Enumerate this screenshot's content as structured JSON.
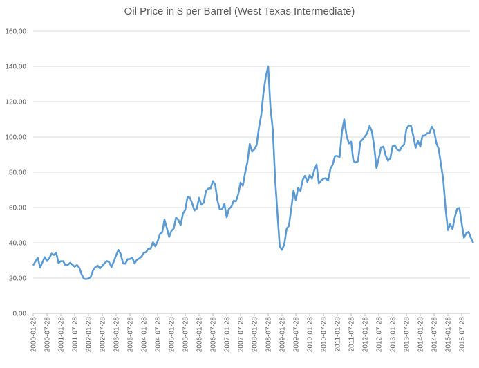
{
  "chart_data": {
    "type": "line",
    "title": "Oil Price in $ per Barrel (West Texas Intermediate)",
    "xlabel": "",
    "ylabel": "",
    "ylim": [
      0,
      160
    ],
    "grid": true,
    "legend": "none",
    "line_color": "#5B9BD5",
    "yticks": [
      "0.00",
      "20.00",
      "40.00",
      "60.00",
      "80.00",
      "100.00",
      "120.00",
      "140.00",
      "160.00"
    ],
    "xticks": [
      "2000-01-28",
      "2000-07-28",
      "2001-01-28",
      "2001-07-28",
      "2002-01-28",
      "2002-07-28",
      "2003-01-28",
      "2003-07-28",
      "2004-01-28",
      "2004-07-28",
      "2005-01-28",
      "2005-07-28",
      "2006-01-28",
      "2006-07-28",
      "2007-01-28",
      "2007-07-28",
      "2008-01-28",
      "2008-07-28",
      "2009-01-28",
      "2009-07-28",
      "2010-01-28",
      "2010-07-28",
      "2011-01-28",
      "2011-07-28",
      "2012-01-28",
      "2012-07-28",
      "2013-01-28",
      "2013-07-28",
      "2014-01-28",
      "2014-07-28",
      "2015-01-28",
      "2015-07-28"
    ],
    "x_start": "2000-01",
    "x_step": "monthly",
    "series": [
      {
        "name": "WTI",
        "values": [
          27.2,
          29.4,
          31.5,
          26.0,
          28.8,
          31.8,
          29.7,
          31.3,
          33.9,
          33.1,
          34.4,
          28.5,
          29.6,
          29.6,
          27.2,
          27.4,
          28.6,
          27.6,
          26.4,
          27.4,
          25.9,
          22.2,
          19.6,
          19.4,
          19.7,
          20.7,
          24.5,
          26.2,
          27.0,
          25.5,
          26.9,
          28.4,
          29.7,
          28.9,
          26.3,
          29.4,
          32.9,
          36.0,
          33.6,
          28.3,
          28.1,
          30.7,
          30.8,
          31.6,
          28.3,
          30.3,
          31.1,
          32.2,
          34.3,
          34.7,
          36.7,
          36.7,
          40.3,
          38.0,
          40.8,
          44.9,
          46.0,
          53.1,
          48.5,
          43.3,
          46.8,
          48.0,
          54.3,
          53.0,
          50.0,
          56.5,
          58.7,
          66.0,
          65.6,
          62.4,
          58.3,
          59.4,
          65.5,
          61.6,
          62.7,
          69.4,
          70.8,
          70.9,
          75.0,
          73.0,
          63.8,
          58.9,
          59.1,
          62.0,
          54.5,
          59.3,
          60.4,
          63.9,
          63.5,
          67.5,
          74.1,
          72.4,
          79.9,
          85.8,
          96.0,
          91.7,
          93.0,
          95.4,
          105.4,
          112.6,
          125.4,
          134.5,
          140.0,
          116.7,
          104.1,
          76.6,
          57.3,
          38.0,
          36.0,
          39.1,
          47.9,
          49.7,
          59.0,
          69.6,
          64.2,
          71.1,
          69.4,
          75.7,
          78.0,
          74.5,
          78.3,
          76.4,
          81.2,
          84.3,
          73.7,
          75.3,
          76.3,
          76.6,
          75.2,
          81.9,
          84.3,
          89.2,
          89.2,
          88.6,
          102.9,
          110.0,
          100.9,
          96.3,
          97.3,
          86.3,
          85.5,
          86.3,
          97.2,
          98.6,
          100.3,
          102.2,
          106.2,
          103.3,
          94.7,
          82.3,
          87.9,
          94.1,
          94.5,
          89.5,
          86.5,
          87.9,
          94.8,
          95.3,
          92.9,
          92.0,
          94.5,
          95.8,
          104.6,
          106.6,
          106.3,
          100.5,
          93.9,
          97.6,
          94.6,
          100.8,
          100.8,
          102.1,
          102.2,
          105.8,
          103.6,
          96.5,
          93.2,
          84.4,
          75.8,
          59.3,
          47.2,
          50.6,
          47.8,
          54.5,
          59.3,
          59.8,
          50.9,
          42.9,
          45.5,
          46.2,
          42.7,
          40.0
        ]
      }
    ]
  }
}
